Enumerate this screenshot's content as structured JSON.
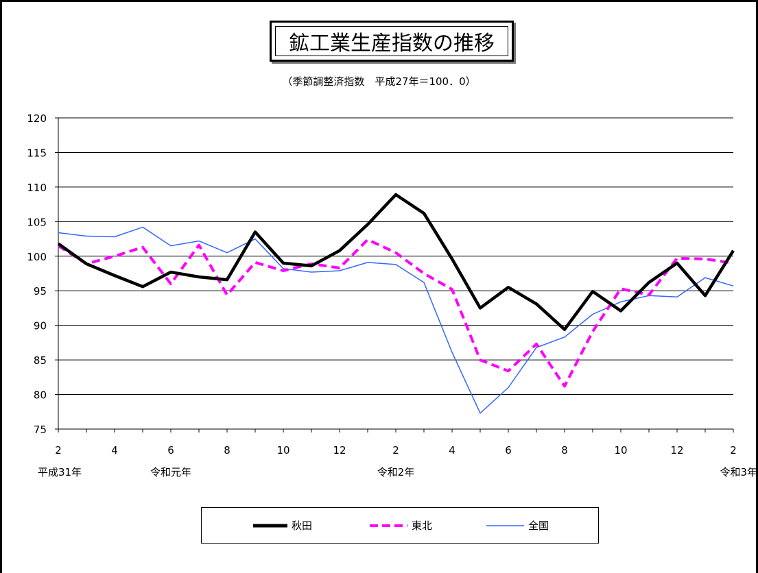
{
  "chart_data": {
    "type": "line",
    "title": "鉱工業生産指数の推移",
    "subtitle": "（季節調整済指数　平成27年＝100．0）",
    "ylim": [
      75,
      120
    ],
    "yticks": [
      75,
      80,
      85,
      90,
      95,
      100,
      105,
      110,
      115,
      120
    ],
    "x": [
      "平成31年2月",
      "3月",
      "4月",
      "5月",
      "6月",
      "7月",
      "8月",
      "9月",
      "10月",
      "11月",
      "12月",
      "令和2年1月",
      "2月",
      "3月",
      "4月",
      "5月",
      "6月",
      "7月",
      "8月",
      "9月",
      "10月",
      "11月",
      "12月",
      "令和3年1月",
      "2月"
    ],
    "x_tick_labels": [
      {
        "index": 0,
        "label": "2"
      },
      {
        "index": 2,
        "label": "4"
      },
      {
        "index": 4,
        "label": "6"
      },
      {
        "index": 6,
        "label": "8"
      },
      {
        "index": 8,
        "label": "10"
      },
      {
        "index": 10,
        "label": "12"
      },
      {
        "index": 12,
        "label": "2"
      },
      {
        "index": 14,
        "label": "4"
      },
      {
        "index": 16,
        "label": "6"
      },
      {
        "index": 18,
        "label": "8"
      },
      {
        "index": 20,
        "label": "10"
      },
      {
        "index": 22,
        "label": "12"
      },
      {
        "index": 24,
        "label": "2"
      }
    ],
    "x_era_labels": [
      {
        "index": 0,
        "label": "平成31年"
      },
      {
        "index": 4,
        "label": "令和元年"
      },
      {
        "index": 12,
        "label": "令和2年"
      },
      {
        "index": 24,
        "label": "令和3年"
      }
    ],
    "grid": true,
    "legend_position": "bottom",
    "series": [
      {
        "name": "秋田",
        "color": "#000000",
        "style": "solid-thick",
        "values": [
          101.8,
          98.9,
          97.2,
          95.6,
          97.7,
          97.0,
          96.6,
          103.5,
          99.0,
          98.6,
          100.8,
          104.6,
          108.9,
          106.2,
          99.6,
          92.5,
          95.5,
          93.1,
          89.4,
          94.9,
          92.1,
          96.2,
          99.0,
          94.3,
          100.8
        ]
      },
      {
        "name": "東北",
        "color": "#ff00ff",
        "style": "dashed",
        "values": [
          101.5,
          98.9,
          100.0,
          101.3,
          96.0,
          101.6,
          94.4,
          99.1,
          97.9,
          98.9,
          98.3,
          102.4,
          100.5,
          97.5,
          95.2,
          85.0,
          83.4,
          87.3,
          81.2,
          89.1,
          95.3,
          94.4,
          99.7,
          99.6,
          99.0
        ]
      },
      {
        "name": "全国",
        "color": "#3366ff",
        "style": "solid-thin",
        "values": [
          103.4,
          102.9,
          102.8,
          104.2,
          101.5,
          102.2,
          100.5,
          102.5,
          98.2,
          97.7,
          97.9,
          99.1,
          98.8,
          96.2,
          86.1,
          77.3,
          81.0,
          86.8,
          88.3,
          91.6,
          93.4,
          94.3,
          94.1,
          96.9,
          95.7
        ]
      }
    ]
  }
}
